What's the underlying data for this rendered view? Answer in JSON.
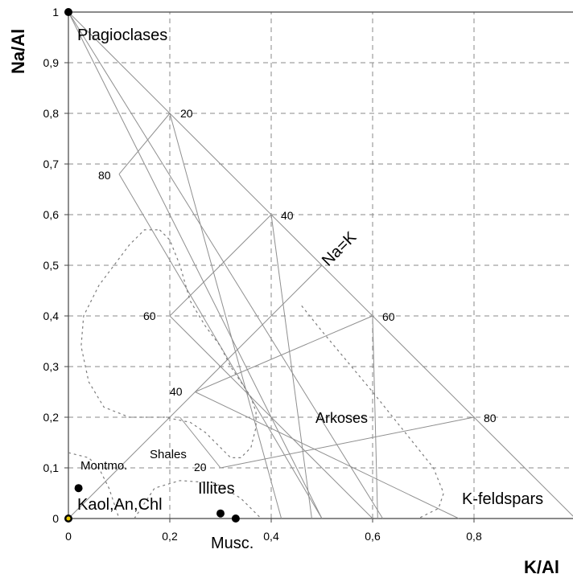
{
  "chart_data": {
    "type": "scatter",
    "title": "",
    "xlabel": "K/Al",
    "ylabel": "Na/Al",
    "xlim": [
      0,
      1
    ],
    "ylim": [
      0,
      1
    ],
    "grid": true,
    "x_ticks": [
      "0",
      "0,2",
      "0,4",
      "0,6",
      "0,8",
      "1"
    ],
    "y_ticks": [
      "0",
      "0,1",
      "0,2",
      "0,3",
      "0,4",
      "0,5",
      "0,6",
      "0,7",
      "0,8",
      "0,9",
      "1"
    ],
    "points": [
      {
        "name": "Plagioclases",
        "x": 0,
        "y": 1
      },
      {
        "name": "Montmo.",
        "x": 0.02,
        "y": 0.06
      },
      {
        "name": "Kaol,An,Chl",
        "x": 0,
        "y": 0
      },
      {
        "name": "Illites",
        "x": 0.3,
        "y": 0.01
      },
      {
        "name": "Musc.",
        "x": 0.33,
        "y": 0
      }
    ],
    "fields": [
      "Arkoses",
      "Shales",
      "K-feldspars"
    ],
    "line_labels": [
      "Na=K"
    ],
    "scale_labels": [
      "20",
      "40",
      "60",
      "80",
      "80",
      "60",
      "40",
      "20"
    ]
  }
}
